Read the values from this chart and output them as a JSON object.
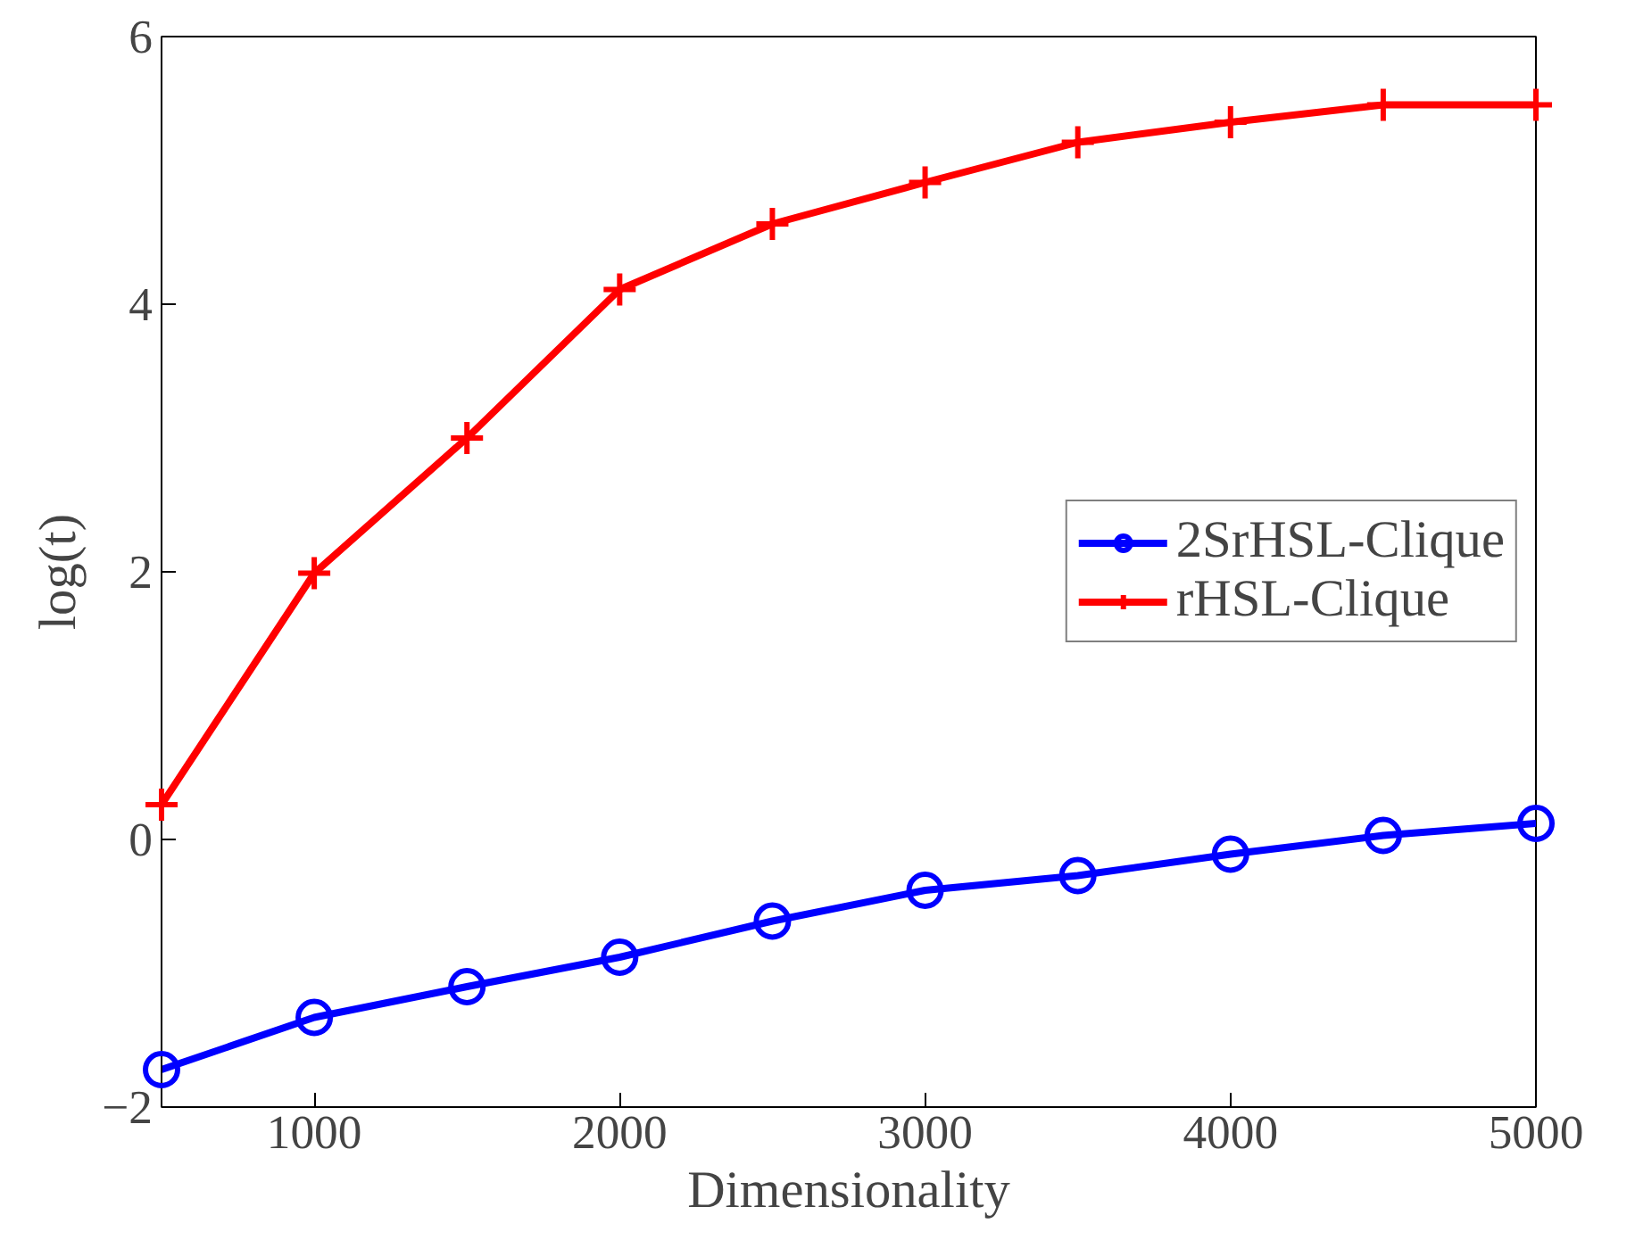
{
  "chart_data": {
    "type": "line",
    "xlabel": "Dimensionality",
    "ylabel": "log(t)",
    "x": [
      500,
      1000,
      1500,
      2000,
      2500,
      3000,
      3500,
      4000,
      4500,
      5000
    ],
    "series": [
      {
        "name": "2SrHSL-Clique",
        "color": "#0000ff",
        "marker": "circle",
        "values": [
          -1.72,
          -1.33,
          -1.1,
          -0.88,
          -0.61,
          -0.38,
          -0.27,
          -0.11,
          0.03,
          0.12
        ]
      },
      {
        "name": "rHSL-Clique",
        "color": "#ff0000",
        "marker": "cross",
        "values": [
          0.26,
          1.99,
          3.0,
          4.11,
          4.6,
          4.91,
          5.21,
          5.36,
          5.49,
          5.49
        ]
      }
    ],
    "xlim": [
      500,
      5000
    ],
    "ylim": [
      -2,
      6
    ],
    "xticks": [
      1000,
      2000,
      3000,
      4000,
      5000
    ],
    "yticks": [
      -2,
      0,
      2,
      4,
      6
    ],
    "grid": false,
    "legend": "right",
    "line_style": "solid"
  }
}
